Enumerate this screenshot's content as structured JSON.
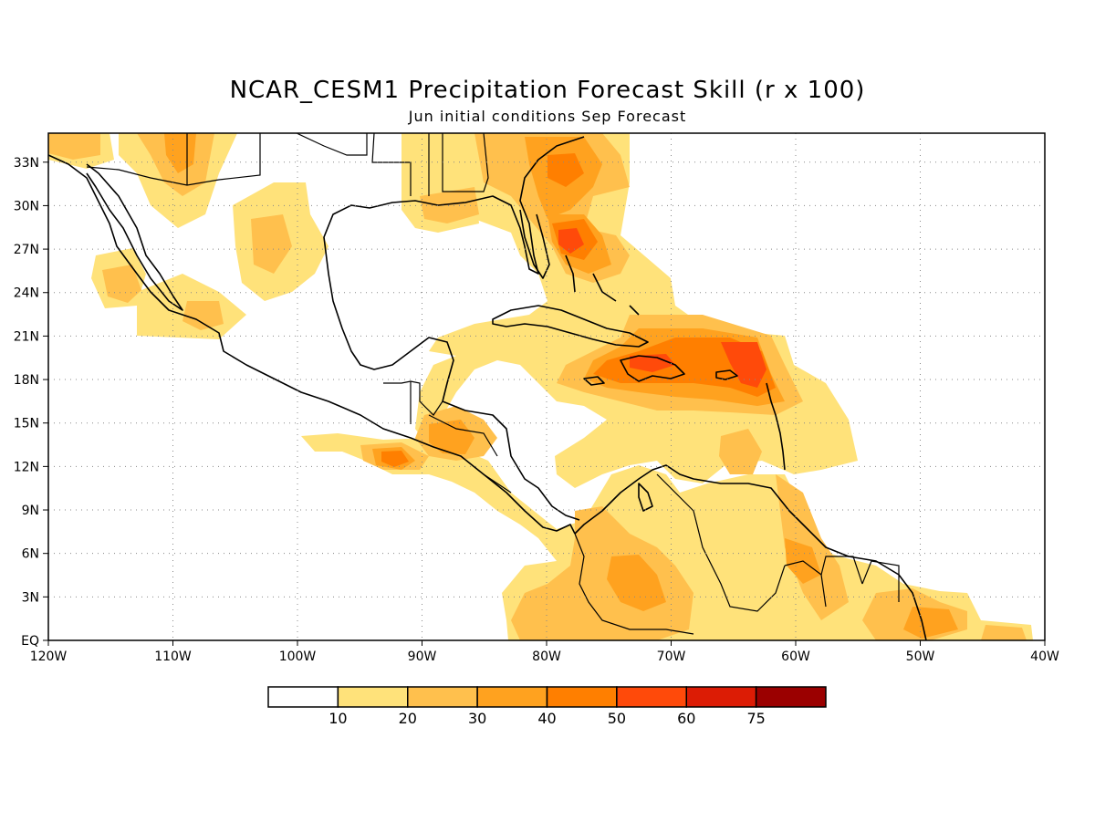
{
  "title": "NCAR_CESM1 Precipitation Forecast Skill (r x 100)",
  "subtitle": "Jun initial conditions  Sep Forecast",
  "map": {
    "lon_labels": [
      "120W",
      "110W",
      "100W",
      "90W",
      "80W",
      "70W",
      "60W",
      "50W",
      "40W"
    ],
    "lat_labels": [
      "EQ",
      "3N",
      "6N",
      "9N",
      "12N",
      "15N",
      "18N",
      "21N",
      "24N",
      "27N",
      "30N",
      "33N"
    ],
    "lon_range": [
      -120,
      -40
    ],
    "lat_range": [
      0,
      35
    ],
    "gridlines": "dotted"
  },
  "colorbar": {
    "labels": [
      "10",
      "20",
      "30",
      "40",
      "50",
      "60",
      "75"
    ],
    "colors": [
      "#ffffff",
      "#ffe27a",
      "#ffc04d",
      "#ffa21f",
      "#ff7f00",
      "#ff4a0a",
      "#dc1c05",
      "#9b0000"
    ]
  },
  "skill_levels": {
    "lvl1": "#ffe27a",
    "lvl2": "#ffc04d",
    "lvl3": "#ffa21f",
    "lvl4": "#ff7f00",
    "lvl5": "#ff4a0a",
    "lvl6": "#dc1c05"
  }
}
